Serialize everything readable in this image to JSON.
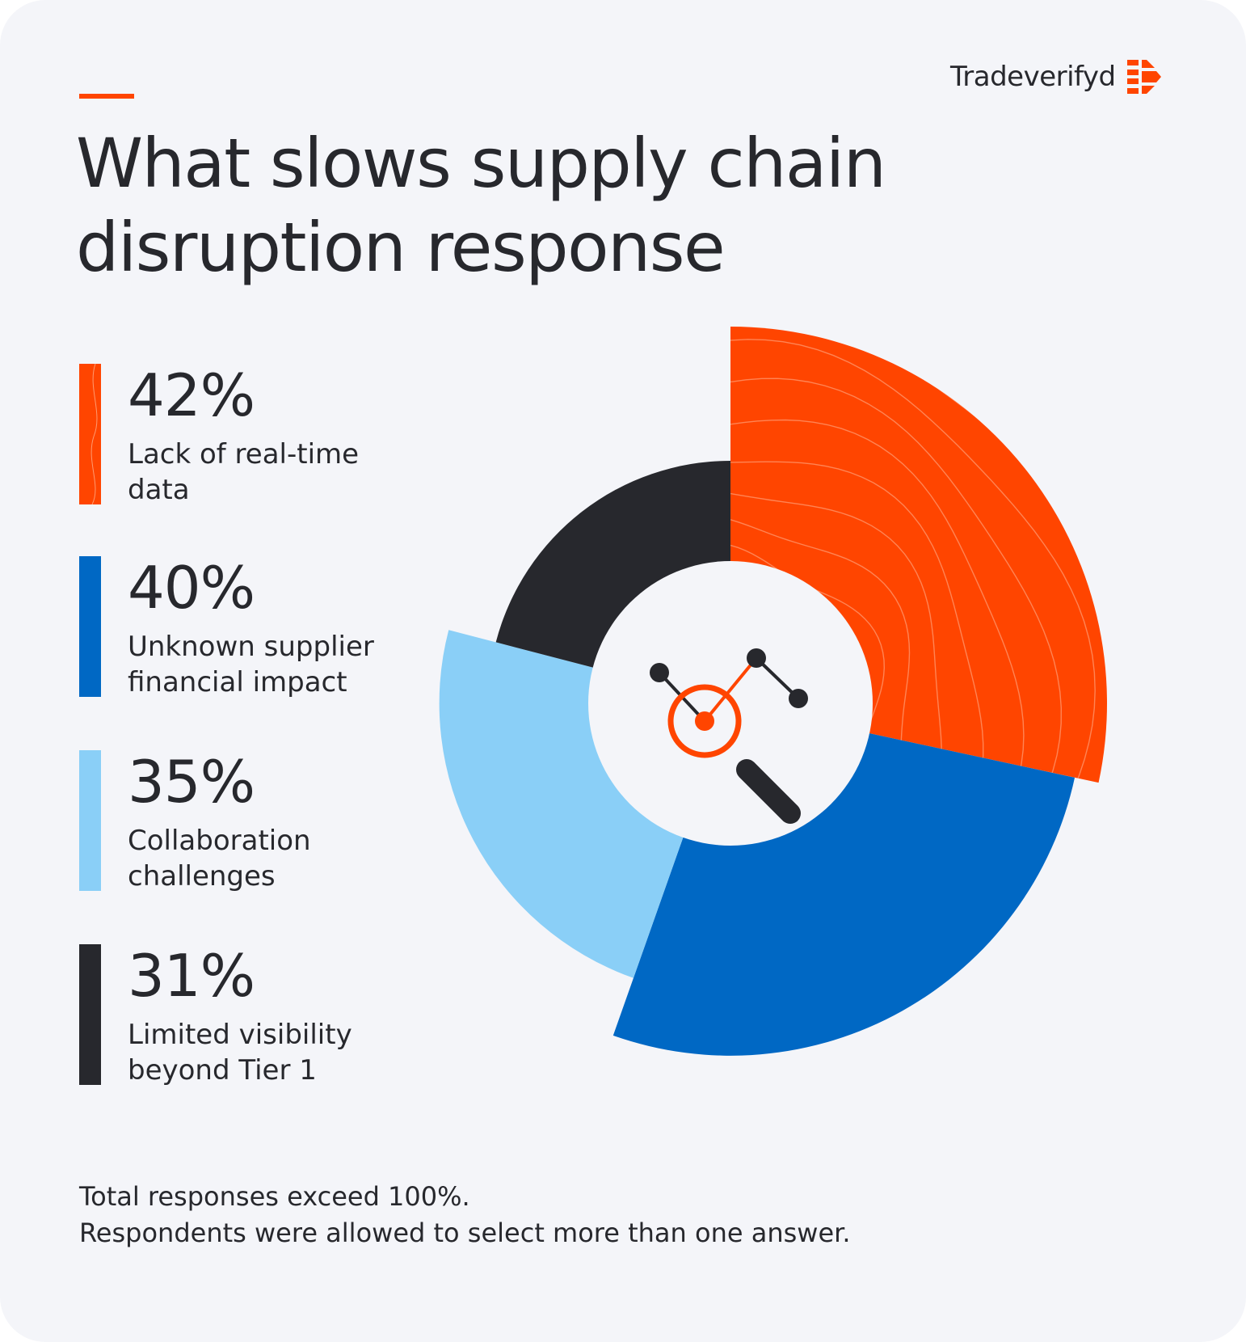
{
  "brand": {
    "name": "Tradeverifyd",
    "logo_icon": "tradeverifyd-logo-icon"
  },
  "title": {
    "line1": "What slows supply chain",
    "line2": "disruption response"
  },
  "legend": [
    {
      "percent": "42%",
      "line1": "Lack of real-time",
      "line2": "data",
      "color": "#ff4500"
    },
    {
      "percent": "40%",
      "line1": "Unknown supplier",
      "line2": "financial impact",
      "color": "#0068c4"
    },
    {
      "percent": "35%",
      "line1": "Collaboration",
      "line2": "challenges",
      "color": "#8acff7"
    },
    {
      "percent": "31%",
      "line1": "Limited visibility",
      "line2": "beyond Tier 1",
      "color": "#27282d"
    }
  ],
  "chart_data": {
    "type": "pie",
    "title": "What slows supply chain disruption response",
    "categories": [
      "Lack of real-time data",
      "Unknown supplier financial impact",
      "Collaboration challenges",
      "Limited visibility beyond Tier 1"
    ],
    "values": [
      42,
      40,
      35,
      31
    ],
    "unit": "%",
    "colors": [
      "#ff4500",
      "#0068c4",
      "#8acff7",
      "#27282d"
    ],
    "note": "Radial (rose) donut: segment length scales with value; responses exceed 100%",
    "center_icon": "magnifier-analytics-icon"
  },
  "footnote": {
    "line1": "Total responses exceed 100%.",
    "line2": "Respondents were allowed to select more than one answer."
  }
}
